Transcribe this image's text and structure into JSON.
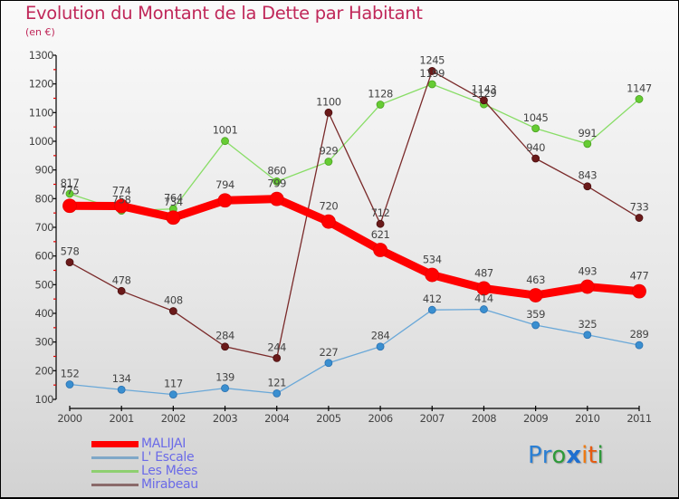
{
  "chart_data": {
    "type": "line",
    "title": "Evolution du Montant de la Dette par Habitant",
    "subtitle": "(en €)",
    "xlabel": "",
    "ylabel": "",
    "x": [
      "2000",
      "2001",
      "2002",
      "2003",
      "2004",
      "2005",
      "2006",
      "2007",
      "2008",
      "2009",
      "2010",
      "2011"
    ],
    "ylim": [
      100,
      1300
    ],
    "yticks": [
      100,
      200,
      300,
      400,
      500,
      600,
      700,
      800,
      900,
      1000,
      1100,
      1200,
      1300
    ],
    "grid": false,
    "legend_position": "bottom-left",
    "series": [
      {
        "name": "MALIJAI",
        "color": "#ff0000",
        "values": [
          775,
          774,
          734,
          794,
          799,
          720,
          621,
          534,
          487,
          463,
          493,
          477
        ]
      },
      {
        "name": "L' Escale",
        "color": "#3a8fd0",
        "values": [
          152,
          134,
          117,
          139,
          121,
          227,
          284,
          412,
          414,
          359,
          325,
          289
        ]
      },
      {
        "name": "Les Mées",
        "color": "#66cc33",
        "values": [
          817,
          758,
          764,
          1001,
          860,
          929,
          1128,
          1199,
          1129,
          1045,
          991,
          1147
        ]
      },
      {
        "name": "Mirabeau",
        "color": "#6b1a1a",
        "values": [
          578,
          478,
          408,
          284,
          244,
          1100,
          712,
          1245,
          1143,
          940,
          843,
          733
        ]
      }
    ]
  },
  "logo": {
    "letters": [
      {
        "ch": "P",
        "color": "#2a7fd4"
      },
      {
        "ch": "r",
        "color": "#2a7fd4"
      },
      {
        "ch": "o",
        "color": "#2e9a3a"
      },
      {
        "ch": "x",
        "color": "#1f6fd0"
      },
      {
        "ch": "i",
        "color": "#f07a10"
      },
      {
        "ch": "t",
        "color": "#e65a10"
      },
      {
        "ch": "i",
        "color": "#2e9a3a"
      }
    ]
  }
}
